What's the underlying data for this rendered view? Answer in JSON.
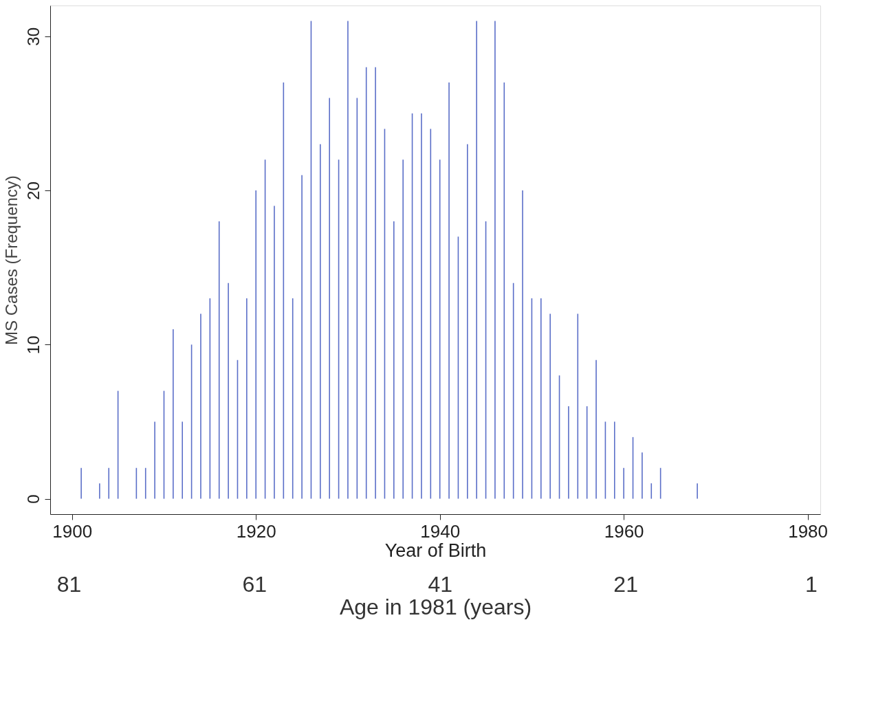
{
  "chart_data": {
    "type": "bar",
    "xlabel": "Year of Birth",
    "ylabel": "MS Cases (Frequency)",
    "x2label": "Age in 1981 (years)",
    "x": [
      1901,
      1903,
      1904,
      1905,
      1907,
      1908,
      1909,
      1910,
      1911,
      1912,
      1913,
      1914,
      1915,
      1916,
      1917,
      1918,
      1919,
      1920,
      1921,
      1922,
      1923,
      1924,
      1925,
      1926,
      1927,
      1928,
      1929,
      1930,
      1931,
      1932,
      1933,
      1934,
      1935,
      1936,
      1937,
      1938,
      1939,
      1940,
      1941,
      1942,
      1943,
      1944,
      1945,
      1946,
      1947,
      1948,
      1949,
      1950,
      1951,
      1952,
      1953,
      1954,
      1955,
      1956,
      1957,
      1958,
      1959,
      1960,
      1961,
      1962,
      1963,
      1964,
      1968
    ],
    "values": [
      2,
      1,
      2,
      7,
      2,
      2,
      5,
      7,
      11,
      5,
      10,
      12,
      13,
      18,
      14,
      9,
      13,
      20,
      22,
      19,
      27,
      13,
      21,
      31,
      23,
      26,
      22,
      31,
      26,
      28,
      28,
      24,
      18,
      22,
      25,
      25,
      24,
      22,
      27,
      17,
      23,
      31,
      18,
      31,
      27,
      14,
      20,
      13,
      13,
      12,
      8,
      6,
      12,
      6,
      9,
      5,
      5,
      2,
      4,
      3,
      1,
      2,
      1
    ],
    "color": "#5a6ec8",
    "xlim": [
      1898,
      1981
    ],
    "xticks": [
      1900,
      1920,
      1940,
      1960,
      1980
    ],
    "ylim": [
      -1,
      32
    ],
    "yticks": [
      0,
      10,
      20,
      30
    ],
    "x2lim": [
      83,
      0
    ],
    "x2ticks": [
      81,
      61,
      41,
      21,
      1
    ],
    "grid": false
  }
}
